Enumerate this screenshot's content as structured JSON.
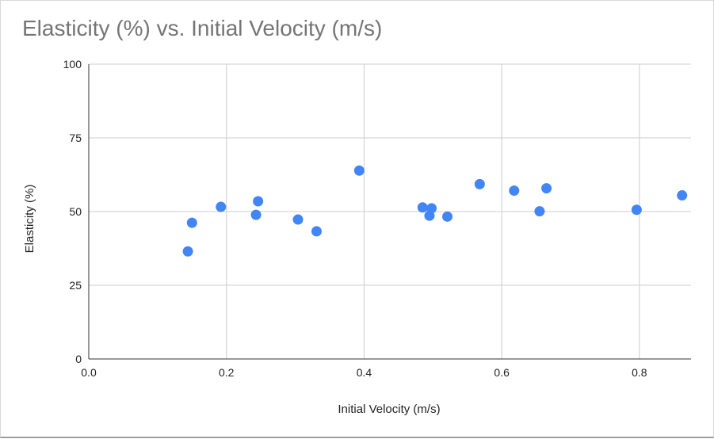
{
  "chart_data": {
    "type": "scatter",
    "title": "Elasticity (%) vs. Initial Velocity (m/s)",
    "xlabel": "Initial Velocity (m/s)",
    "ylabel": "Elasticity (%)",
    "xlim": [
      0,
      0.875
    ],
    "ylim": [
      0,
      100
    ],
    "xticks": [
      "0.0",
      "0.2",
      "0.4",
      "0.6",
      "0.8"
    ],
    "yticks": [
      "0",
      "25",
      "50",
      "75",
      "100"
    ],
    "grid": true,
    "legend": "none",
    "point_color": "#4285f4",
    "points": [
      {
        "x": 0.144,
        "y": 36.5
      },
      {
        "x": 0.15,
        "y": 46.2
      },
      {
        "x": 0.192,
        "y": 51.6
      },
      {
        "x": 0.243,
        "y": 48.9
      },
      {
        "x": 0.246,
        "y": 53.5
      },
      {
        "x": 0.304,
        "y": 47.3
      },
      {
        "x": 0.331,
        "y": 43.3
      },
      {
        "x": 0.393,
        "y": 63.9
      },
      {
        "x": 0.485,
        "y": 51.4
      },
      {
        "x": 0.495,
        "y": 48.6
      },
      {
        "x": 0.498,
        "y": 51.1
      },
      {
        "x": 0.521,
        "y": 48.3
      },
      {
        "x": 0.568,
        "y": 59.3
      },
      {
        "x": 0.618,
        "y": 57.1
      },
      {
        "x": 0.655,
        "y": 50.1
      },
      {
        "x": 0.665,
        "y": 57.9
      },
      {
        "x": 0.796,
        "y": 50.6
      },
      {
        "x": 0.862,
        "y": 55.5
      }
    ]
  }
}
